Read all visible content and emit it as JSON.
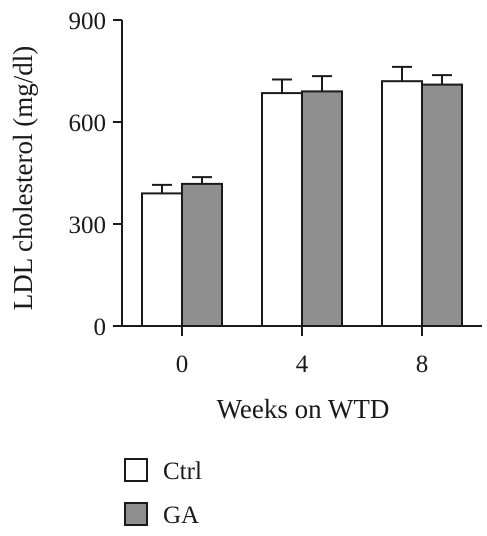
{
  "chart_data": {
    "type": "bar",
    "xlabel": "Weeks on WTD",
    "ylabel": "LDL cholesterol (mg/dl)",
    "categories": [
      "0",
      "4",
      "8"
    ],
    "ylim": [
      0,
      900
    ],
    "yticks": [
      "0",
      "300",
      "600",
      "900"
    ],
    "error_bars": true,
    "legend_position": "bottom-left",
    "series": [
      {
        "name": "Ctrl",
        "color": "#ffffff",
        "values": [
          390,
          685,
          720
        ],
        "errors": [
          25,
          40,
          42
        ]
      },
      {
        "name": "GA",
        "color": "#8f8f8f",
        "values": [
          418,
          690,
          710
        ],
        "errors": [
          20,
          45,
          28
        ]
      }
    ]
  }
}
